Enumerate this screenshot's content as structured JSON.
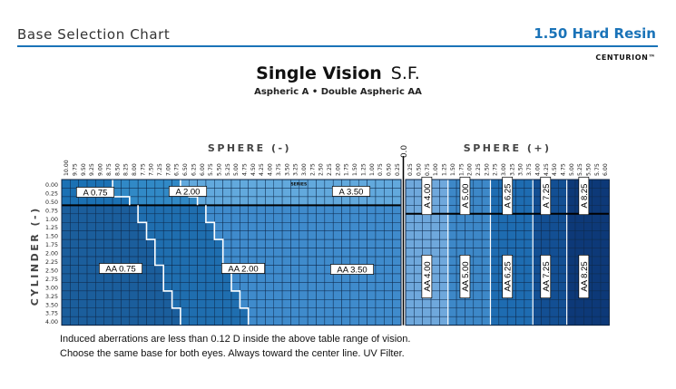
{
  "header": {
    "left_title": "Base Selection Chart",
    "right_title": "1.50 Hard Resin",
    "brand": "CENTURION™"
  },
  "title": {
    "main": "Single Vision",
    "suffix": "S.F.",
    "subtitle": "Aspheric A • Double Aspheric AA"
  },
  "notes": [
    "Induced aberrations are less than 0.12 D inside the above table range of vision.",
    "Choose the same base for both eyes. Always toward the center line. UV Filter."
  ],
  "colors": {
    "A0.75": "#1b71b4",
    "A2.00": "#3189c6",
    "A3.50": "#62a9dd",
    "AA0.75": "#1b5e9c",
    "AA2.00": "#1f6eaf",
    "AA3.50": "#3f8bcc",
    "P4": "#6fa8dc",
    "P5": "#3d88c8",
    "P6.25": "#1e6cb1",
    "P7.25": "#134f93",
    "P8.25": "#0d3978",
    "grid": "#0e2a4d",
    "label_bg": "#ffffff"
  },
  "chart_data": {
    "type": "heatmap",
    "x_axis_minus_label": "SPHERE (-)",
    "x_axis_plus_label": "SPHERE (+)",
    "center_label": "0.0",
    "y_axis_label": "CYLINDER (-)",
    "series_label": "SERIES",
    "sphere_minus": [
      "10.00",
      "9.75",
      "9.50",
      "9.25",
      "9.00",
      "8.75",
      "8.50",
      "8.25",
      "8.00",
      "7.75",
      "7.50",
      "7.25",
      "7.00",
      "6.75",
      "6.50",
      "6.25",
      "6.00",
      "5.75",
      "5.50",
      "5.25",
      "5.00",
      "4.75",
      "4.50",
      "4.25",
      "4.00",
      "3.75",
      "3.50",
      "3.25",
      "3.00",
      "2.75",
      "2.50",
      "2.25",
      "2.00",
      "1.75",
      "1.50",
      "1.25",
      "1.00",
      "0.75",
      "0.50",
      "0.25"
    ],
    "sphere_plus": [
      "0.25",
      "0.50",
      "0.75",
      "1.00",
      "1.25",
      "1.50",
      "1.75",
      "2.00",
      "2.25",
      "2.50",
      "2.75",
      "3.00",
      "3.25",
      "3.50",
      "3.75",
      "4.00",
      "4.25",
      "4.50",
      "4.75",
      "5.00",
      "5.25",
      "5.50",
      "5.75",
      "6.00"
    ],
    "cylinder": [
      "0.00",
      "0.25",
      "0.50",
      "0.75",
      "1.00",
      "1.25",
      "1.50",
      "1.75",
      "2.00",
      "2.25",
      "2.50",
      "2.75",
      "3.00",
      "3.25",
      "3.50",
      "3.75",
      "4.00"
    ],
    "minus_zone_boundaries": {
      "A2.00_starts_at_column_index_by_row": [
        6,
        6,
        8
      ],
      "A3.50_starts_at_column_index_by_row": [
        14,
        15,
        16
      ],
      "AA2.00_starts_at_column_index_by_row": [
        9,
        9,
        10,
        10,
        11,
        11,
        11,
        12,
        12,
        12,
        13,
        13,
        14,
        14
      ],
      "AA3.50_starts_at_column_index_by_row": [
        17,
        17,
        18,
        18,
        19,
        19,
        19,
        20,
        20,
        20,
        21,
        21,
        22,
        22
      ]
    },
    "plus_zones": [
      {
        "label": "4.00",
        "from": "0.25",
        "to": "1.25"
      },
      {
        "label": "5.00",
        "from": "1.50",
        "to": "2.50"
      },
      {
        "label": "6.25",
        "from": "2.75",
        "to": "3.75"
      },
      {
        "label": "7.25",
        "from": "4.00",
        "to": "4.75"
      },
      {
        "label": "8.25",
        "from": "5.00",
        "to": "6.00"
      }
    ],
    "region_labels": {
      "A0.75": "A 0.75",
      "A2.00": "A 2.00",
      "A3.50": "A 3.50",
      "AA0.75": "AA 0.75",
      "AA2.00": "AA 2.00",
      "AA3.50": "AA 3.50",
      "PA4": "A 4.00",
      "PA5": "A 5.00",
      "PA6": "A 6.25",
      "PA7": "A 7.25",
      "PA8": "A 8.25",
      "PAA4": "AA 4.00",
      "PAA5": "AA 5.00",
      "PAA6": "AA 6.25",
      "PAA7": "AA 7.25",
      "PAA8": "AA 8.25"
    }
  }
}
